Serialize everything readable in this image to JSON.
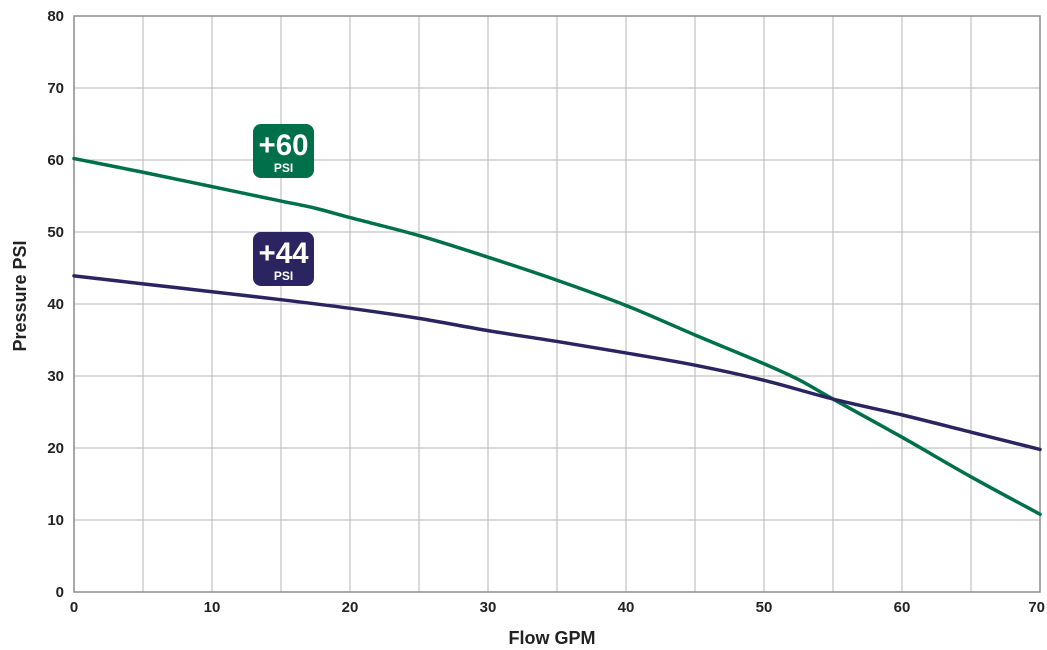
{
  "chart_data": {
    "type": "line",
    "xlabel": "Flow GPM",
    "ylabel": "Pressure PSI",
    "xlim": [
      0,
      70
    ],
    "ylim": [
      0,
      80
    ],
    "xticks": [
      0,
      10,
      20,
      30,
      40,
      50,
      60,
      70
    ],
    "yticks": [
      0,
      10,
      20,
      30,
      40,
      50,
      60,
      70,
      80
    ],
    "grid_step_x": 5,
    "grid_step_y": 10,
    "grid": true,
    "series": [
      {
        "name": "+60 PSI",
        "badge_value": "+60",
        "badge_unit": "PSI",
        "color": "#00704a",
        "x": [
          0,
          5,
          10,
          15,
          17.5,
          20,
          25,
          30,
          35,
          40,
          45,
          50,
          52.5,
          55,
          60,
          65,
          70
        ],
        "y": [
          60.2,
          58.3,
          56.3,
          54.3,
          53.3,
          52,
          49.5,
          46.5,
          43.3,
          39.8,
          35.7,
          31.7,
          29.5,
          26.8,
          21.5,
          16,
          10.8
        ]
      },
      {
        "name": "+44 PSI",
        "badge_value": "+44",
        "badge_unit": "PSI",
        "color": "#2a2560",
        "x": [
          0,
          5,
          10,
          15,
          20,
          25,
          30,
          35,
          40,
          45,
          50,
          55,
          60,
          65,
          70
        ],
        "y": [
          43.9,
          42.8,
          41.7,
          40.6,
          39.4,
          38,
          36.3,
          34.8,
          33.2,
          31.5,
          29.4,
          26.8,
          24.6,
          22.2,
          19.8
        ]
      }
    ]
  }
}
